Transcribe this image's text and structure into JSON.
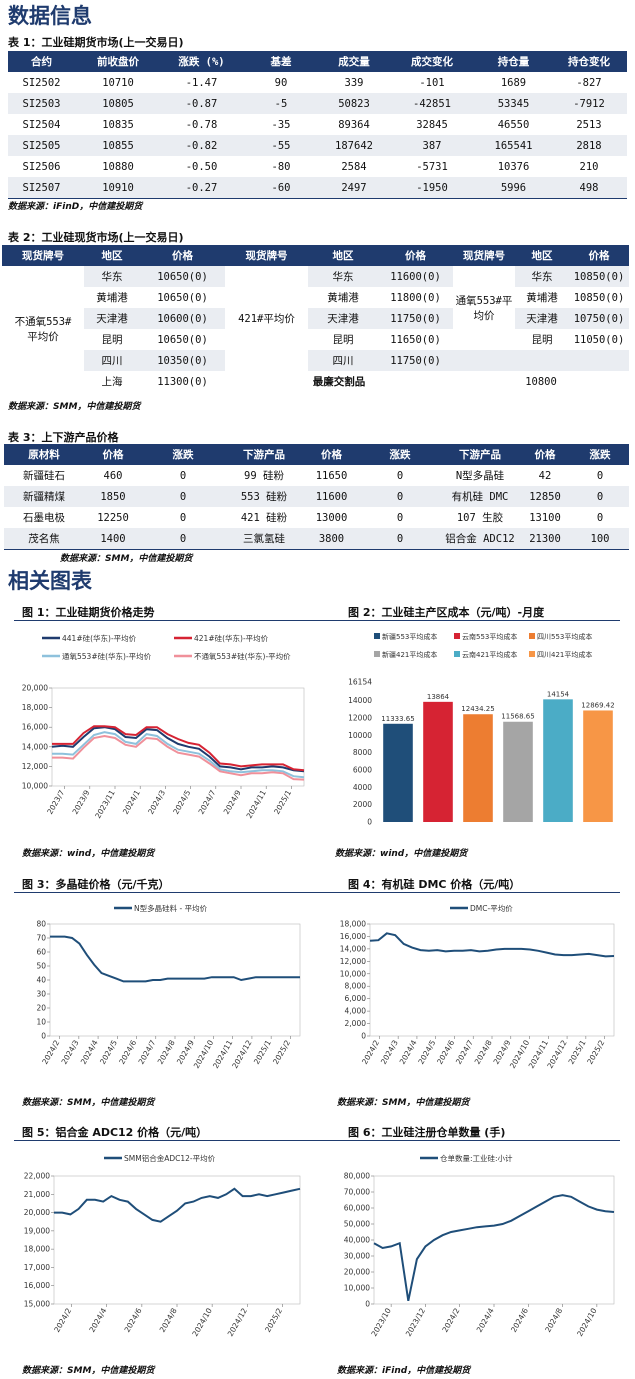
{
  "section1_title": "数据信息",
  "t1": {
    "caption": "表 1：工业硅期货市场(上一交易日)",
    "headers": [
      "合约",
      "前收盘价",
      "涨跌 (%)",
      "基差",
      "成交量",
      "成交变化",
      "持仓量",
      "持仓变化"
    ],
    "rows": [
      [
        "SI2502",
        "10710",
        "-1.47",
        "90",
        "339",
        "-101",
        "1689",
        "-827"
      ],
      [
        "SI2503",
        "10805",
        "-0.87",
        "-5",
        "50823",
        "-42851",
        "53345",
        "-7912"
      ],
      [
        "SI2504",
        "10835",
        "-0.78",
        "-35",
        "89364",
        "32845",
        "46550",
        "2513"
      ],
      [
        "SI2505",
        "10855",
        "-0.82",
        "-55",
        "187642",
        "387",
        "165541",
        "2818"
      ],
      [
        "SI2506",
        "10880",
        "-0.50",
        "-80",
        "2584",
        "-5731",
        "10376",
        "210"
      ],
      [
        "SI2507",
        "10910",
        "-0.27",
        "-60",
        "2497",
        "-1950",
        "5996",
        "498"
      ]
    ],
    "source": "数据来源：iFinD，中信建投期货"
  },
  "t2": {
    "caption": "表 2：工业硅现货市场(上一交易日)",
    "headers": [
      "现货牌号",
      "地区",
      "价格",
      "现货牌号",
      "地区",
      "价格",
      "现货牌号",
      "地区",
      "价格"
    ],
    "g1": {
      "name_line1": "不通氧553#",
      "name_line2": "平均价",
      "regions": [
        "华东",
        "黄埔港",
        "天津港",
        "昆明",
        "四川",
        "上海"
      ],
      "prices": [
        "10650(0)",
        "10650(0)",
        "10600(0)",
        "10650(0)",
        "10350(0)",
        "11300(0)"
      ]
    },
    "g2": {
      "name": "421#平均价",
      "regions": [
        "华东",
        "黄埔港",
        "天津港",
        "昆明",
        "四川"
      ],
      "prices": [
        "11600(0)",
        "11800(0)",
        "11750(0)",
        "11650(0)",
        "11750(0)"
      ]
    },
    "g3": {
      "name": "通氧553#平均价",
      "regions": [
        "华东",
        "黄埔港",
        "天津港",
        "昆明"
      ],
      "prices": [
        "10850(0)",
        "10850(0)",
        "10750(0)",
        "11050(0)"
      ]
    },
    "cheapest_label": "最廉交割品",
    "cheapest_value": "10800",
    "source": "数据来源：SMM，中信建投期货"
  },
  "t3": {
    "caption": "表 3：上下游产品价格",
    "headers": [
      "原材料",
      "价格",
      "涨跌",
      "下游产品",
      "价格",
      "涨跌",
      "下游产品",
      "价格",
      "涨跌"
    ],
    "rows": [
      [
        "新疆硅石",
        "460",
        "0",
        "99 硅粉",
        "11650",
        "0",
        "N型多晶硅",
        "42",
        "0"
      ],
      [
        "新疆精煤",
        "1850",
        "0",
        "553 硅粉",
        "11600",
        "0",
        "有机硅 DMC",
        "12850",
        "0"
      ],
      [
        "石墨电极",
        "12250",
        "0",
        "421 硅粉",
        "13000",
        "0",
        "107 生胶",
        "13100",
        "0"
      ],
      [
        "茂名焦",
        "1400",
        "0",
        "三氯氢硅",
        "3800",
        "0",
        "铝合金 ADC12",
        "21300",
        "100"
      ]
    ],
    "source": "数据来源：SMM，中信建投期货"
  },
  "section2_title": "相关图表",
  "fig1": {
    "caption": "图 1：工业硅期货价格走势",
    "source": "数据来源：wind，中信建投期货",
    "colors": [
      "#1f3b6e",
      "#d62333",
      "#8ec1dc",
      "#f0909a"
    ],
    "chart_data": {
      "type": "line",
      "series": [
        {
          "name": "441#硅(华东)-平均价",
          "values": [
            14000,
            14100,
            14000,
            15000,
            15900,
            16000,
            15800,
            15000,
            14900,
            15800,
            15700,
            14900,
            14300,
            14000,
            13800,
            13000,
            12000,
            11900,
            11700,
            11900,
            11900,
            12000,
            11900,
            11600,
            11500
          ]
        },
        {
          "name": "421#硅(华东)-平均价",
          "values": [
            14300,
            14300,
            14300,
            15400,
            16100,
            16100,
            16000,
            15300,
            15200,
            16000,
            16000,
            15300,
            14800,
            14400,
            14200,
            13400,
            12300,
            12200,
            12000,
            12100,
            12200,
            12200,
            12200,
            11700,
            11600
          ]
        },
        {
          "name": "通氧553#硅(华东)-平均价",
          "values": [
            13300,
            13300,
            13200,
            14200,
            15200,
            15500,
            15300,
            14500,
            14300,
            15300,
            15100,
            14300,
            13700,
            13500,
            13300,
            12600,
            11700,
            11500,
            11400,
            11500,
            11600,
            11600,
            11500,
            11000,
            10900
          ]
        },
        {
          "name": "不通氧553#硅(华东)-平均价",
          "values": [
            12900,
            12900,
            12800,
            13900,
            14900,
            15100,
            14900,
            14200,
            14000,
            14900,
            14800,
            14000,
            13400,
            13200,
            13000,
            12300,
            11500,
            11300,
            11100,
            11300,
            11300,
            11400,
            11300,
            10700,
            10650
          ]
        }
      ],
      "x_ticks": [
        "2023/7",
        "2023/9",
        "2023/11",
        "2024/1",
        "2024/3",
        "2024/5",
        "2024/7",
        "2024/9",
        "2024/11",
        "2025/1"
      ],
      "ylim": [
        10000,
        20000
      ],
      "y_ticks": [
        "10,000",
        "12,000",
        "14,000",
        "16,000",
        "18,000",
        "20,000"
      ]
    }
  },
  "fig2": {
    "caption": "图 2：工业硅主产区成本（元/吨）-月度",
    "source": "数据来源：wind，中信建投期货",
    "chart_data": {
      "type": "bar",
      "series": [
        {
          "name": "新疆553平均成本",
          "value": 11333.65,
          "label": "11333.65",
          "color": "#1f4e79"
        },
        {
          "name": "云南553平均成本",
          "value": 13864,
          "label": "13864",
          "color": "#d62333"
        },
        {
          "name": "四川553平均成本",
          "value": 12434.25,
          "label": "12434.25",
          "color": "#ed7d31"
        },
        {
          "name": "新疆421平均成本",
          "value": 11568.65,
          "label": "11568.65",
          "color": "#a5a5a5"
        },
        {
          "name": "云南421平均成本",
          "value": 14154,
          "label": "14154",
          "color": "#4bacc6"
        },
        {
          "name": "四川421平均成本",
          "value": 12869.42,
          "label": "12869.42",
          "color": "#f79646"
        }
      ],
      "ylim": [
        0,
        16154
      ],
      "y_ticks": [
        "0",
        "2000",
        "4000",
        "6000",
        "8000",
        "10000",
        "12000",
        "14000",
        "16154"
      ]
    }
  },
  "fig3": {
    "caption": "图 3：多晶硅价格（元/千克）",
    "source": "数据来源：SMM，中信建投期货",
    "color": "#1f4e79",
    "chart_data": {
      "type": "line",
      "series": [
        {
          "name": "N型多晶硅料 - 平均价",
          "values": [
            71,
            71,
            71,
            70,
            66,
            58,
            51,
            45,
            43,
            41,
            39,
            39,
            39,
            39,
            40,
            40,
            41,
            41,
            41,
            41,
            41,
            41,
            42,
            42,
            42,
            42,
            40,
            41,
            42,
            42,
            42,
            42,
            42,
            42,
            42
          ]
        }
      ],
      "x_ticks": [
        "2024/2",
        "2024/3",
        "2024/4",
        "2024/5",
        "2024/6",
        "2024/7",
        "2024/8",
        "2024/9",
        "2024/10",
        "2024/11",
        "2024/12",
        "2025/1",
        "2025/2"
      ],
      "ylim": [
        0,
        80
      ],
      "y_ticks": [
        "0",
        "10",
        "20",
        "30",
        "40",
        "50",
        "60",
        "70",
        "80"
      ]
    }
  },
  "fig4": {
    "caption": "图 4：有机硅 DMC 价格（元/吨）",
    "source": "数据来源：SMM，中信建投期货",
    "color": "#1f4e79",
    "chart_data": {
      "type": "line",
      "series": [
        {
          "name": "DMC-平均价",
          "values": [
            15300,
            15400,
            16500,
            16200,
            14800,
            14200,
            13800,
            13700,
            13800,
            13600,
            13700,
            13700,
            13800,
            13600,
            13700,
            13900,
            14000,
            14000,
            14000,
            13900,
            13700,
            13400,
            13100,
            13000,
            13000,
            13100,
            13200,
            13000,
            12800,
            12850
          ]
        }
      ],
      "x_ticks": [
        "2024/2",
        "2024/3",
        "2024/4",
        "2024/5",
        "2024/6",
        "2024/7",
        "2024/8",
        "2024/9",
        "2024/10",
        "2024/11",
        "2024/12",
        "2025/1",
        "2025/2"
      ],
      "ylim": [
        0,
        18000
      ],
      "y_ticks": [
        "0",
        "2,000",
        "4,000",
        "6,000",
        "8,000",
        "10,000",
        "12,000",
        "14,000",
        "16,000",
        "18,000"
      ]
    }
  },
  "fig5": {
    "caption": "图 5：铝合金 ADC12 价格（元/吨）",
    "source": "数据来源：SMM，中信建投期货",
    "color": "#1f4e79",
    "chart_data": {
      "type": "line",
      "series": [
        {
          "name": "SMM铝合金ADC12-平均价",
          "values": [
            20000,
            20000,
            19900,
            20200,
            20700,
            20700,
            20600,
            20900,
            20700,
            20600,
            20200,
            19900,
            19600,
            19500,
            19800,
            20100,
            20500,
            20600,
            20800,
            20900,
            20800,
            21000,
            21300,
            20900,
            20900,
            21000,
            20900,
            21000,
            21100,
            21200,
            21300
          ]
        }
      ],
      "x_ticks": [
        "2024/2",
        "2024/4",
        "2024/6",
        "2024/8",
        "2024/10",
        "2024/12",
        "2025/2"
      ],
      "ylim": [
        15000,
        22000
      ],
      "y_ticks": [
        "15,000",
        "16,000",
        "17,000",
        "18,000",
        "19,000",
        "20,000",
        "21,000",
        "22,000"
      ]
    }
  },
  "fig6": {
    "caption": "图 6：工业硅注册仓单数量 (手)",
    "source": "数据来源：iFind，中信建投期货",
    "color": "#1f4e79",
    "chart_data": {
      "type": "line",
      "series": [
        {
          "name": "仓单数量:工业硅:小计",
          "values": [
            38000,
            35000,
            36000,
            38000,
            2000,
            28000,
            36000,
            40000,
            43000,
            45000,
            46000,
            47000,
            48000,
            48500,
            49000,
            50000,
            52000,
            55000,
            58000,
            61000,
            64000,
            67000,
            68000,
            67000,
            64000,
            61000,
            59000,
            58000,
            57500
          ]
        }
      ],
      "x_ticks": [
        "2023/10",
        "2023/12",
        "2024/2",
        "2024/4",
        "2024/6",
        "2024/8",
        "2024/10"
      ],
      "ylim": [
        0,
        80000
      ],
      "y_ticks": [
        "0",
        "10,000",
        "20,000",
        "30,000",
        "40,000",
        "50,000",
        "60,000",
        "70,000",
        "80,000"
      ]
    }
  }
}
